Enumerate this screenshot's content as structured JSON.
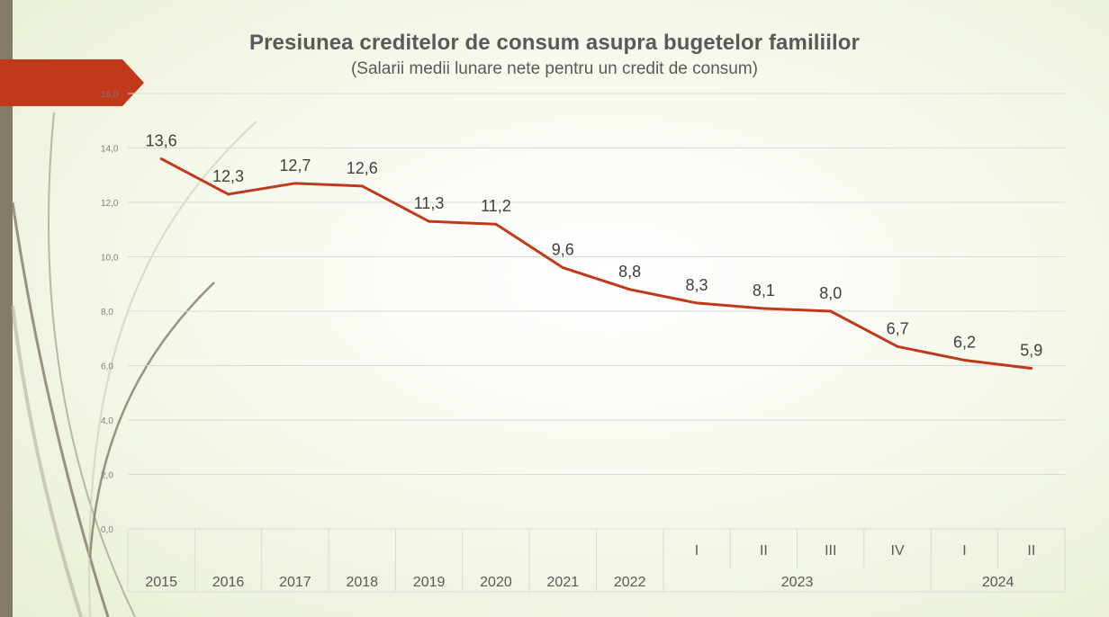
{
  "title": "Presiunea creditelor de consum asupra bugetelor familiilor",
  "subtitle": "(Salarii medii lunare nete pentru un credit de consum)",
  "colors": {
    "line": "#c0391b",
    "banner": "#c0391b",
    "strip": "#847b66",
    "grid": "#d9d9d9"
  },
  "chart_data": {
    "type": "line",
    "title": "Presiunea creditelor de consum asupra bugetelor familiilor",
    "subtitle": "(Salarii medii lunare nete pentru un credit de consum)",
    "xlabel": "",
    "ylabel": "",
    "ylim": [
      0,
      16
    ],
    "yticks": [
      "0,0",
      "2,0",
      "4,0",
      "6,0",
      "8,0",
      "10,0",
      "12,0",
      "14,0",
      "16,0"
    ],
    "grid": true,
    "categories": [
      "2015",
      "2016",
      "2017",
      "2018",
      "2019",
      "2020",
      "2021",
      "2022",
      "2023 I",
      "2023 II",
      "2023 III",
      "2023 IV",
      "2024 I",
      "2024 II"
    ],
    "tick_labels_level1": [
      "2015",
      "2016",
      "2017",
      "2018",
      "2019",
      "2020",
      "2021",
      "2022",
      "I",
      "II",
      "III",
      "IV",
      "I",
      "II"
    ],
    "group_labels": [
      {
        "label": "2023",
        "span": [
          8,
          11
        ]
      },
      {
        "label": "2024",
        "span": [
          12,
          13
        ]
      }
    ],
    "series": [
      {
        "values": [
          13.6,
          12.3,
          12.7,
          12.6,
          11.3,
          11.2,
          9.6,
          8.8,
          8.3,
          8.1,
          8.0,
          6.7,
          6.2,
          5.9
        ],
        "data_labels": [
          "13,6",
          "12,3",
          "12,7",
          "12,6",
          "11,3",
          "11,2",
          "9,6",
          "8,8",
          "8,3",
          "8,1",
          "8,0",
          "6,7",
          "6,2",
          "5,9"
        ]
      }
    ]
  }
}
